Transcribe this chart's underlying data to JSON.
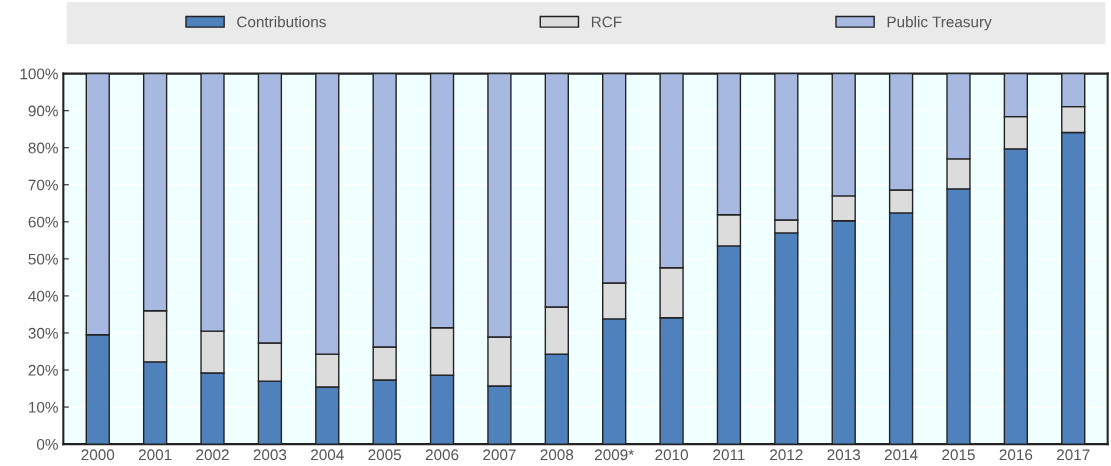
{
  "chart_data": {
    "type": "bar",
    "stacked": true,
    "categories": [
      "2000",
      "2001",
      "2002",
      "2003",
      "2004",
      "2005",
      "2006",
      "2007",
      "2008",
      "2009*",
      "2010",
      "2011",
      "2012",
      "2013",
      "2014",
      "2015",
      "2016",
      "2017"
    ],
    "series": [
      {
        "name": "Contributions",
        "color": "#4f81bd",
        "values": [
          29.5,
          22.2,
          19.2,
          17.0,
          15.4,
          17.3,
          18.6,
          15.7,
          24.3,
          33.8,
          34.1,
          53.5,
          57.0,
          60.3,
          62.4,
          68.9,
          79.7,
          84.1
        ]
      },
      {
        "name": "RCF",
        "color": "#dcdcdc",
        "values": [
          null,
          13.8,
          11.3,
          10.3,
          8.9,
          8.9,
          12.8,
          13.2,
          12.7,
          9.7,
          13.5,
          8.4,
          3.5,
          6.7,
          6.2,
          8.1,
          8.7,
          7.0
        ]
      },
      {
        "name": "Public Treasury",
        "color": "#a7b8e1",
        "values": [
          70.5,
          64.0,
          69.5,
          72.7,
          75.7,
          73.8,
          68.6,
          71.1,
          63.0,
          56.5,
          52.4,
          38.1,
          39.5,
          33.0,
          31.4,
          23.0,
          11.6,
          8.9
        ]
      }
    ],
    "ylim": [
      0,
      100
    ],
    "yticks": [
      {
        "value": 0,
        "label": "0%"
      },
      {
        "value": 10,
        "label": "10%"
      },
      {
        "value": 20,
        "label": "20%"
      },
      {
        "value": 30,
        "label": "30%"
      },
      {
        "value": 40,
        "label": "40%"
      },
      {
        "value": 50,
        "label": "50%"
      },
      {
        "value": 60,
        "label": "60%"
      },
      {
        "value": 70,
        "label": "70%"
      },
      {
        "value": 80,
        "label": "80%"
      },
      {
        "value": 90,
        "label": "90%"
      },
      {
        "value": 100,
        "label": "100%"
      }
    ],
    "grid": "y",
    "legend": "top"
  }
}
